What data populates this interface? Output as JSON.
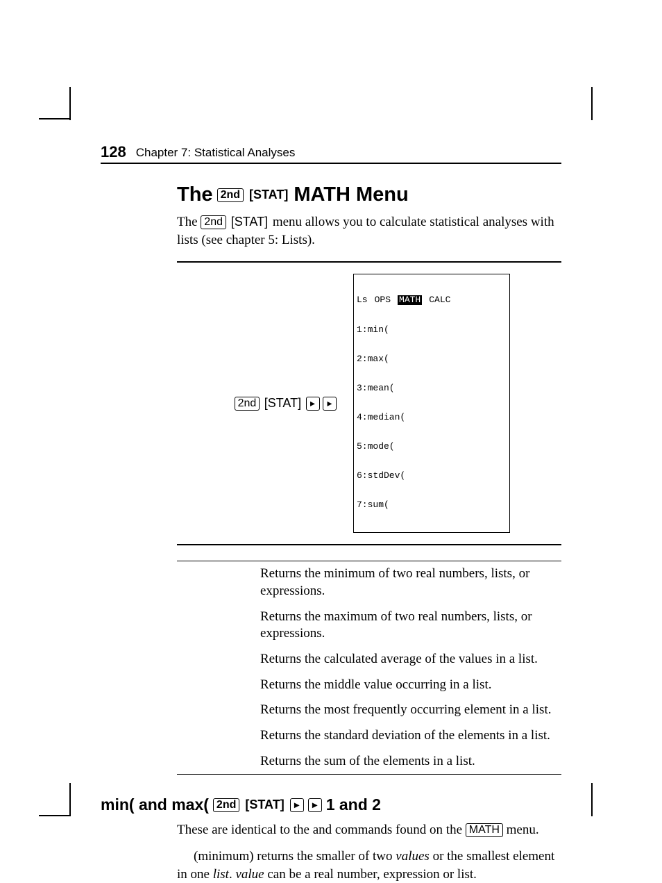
{
  "page_number": "128",
  "running_head": "Chapter 7: Statistical Analyses",
  "h1": {
    "pre": "The",
    "key2nd": "2nd",
    "stat": "[STAT]",
    "post": "MATH Menu"
  },
  "intro": {
    "pre": "The ",
    "key2nd": "2nd",
    "stat": "[STAT]",
    "rest": " menu allows you to calculate statistical analyses with lists (see chapter 5: Lists)."
  },
  "panel_left": {
    "key": "2nd",
    "stat": "[STAT]",
    "arrow": "▸"
  },
  "calc": {
    "tabs": [
      "Ls",
      "OPS",
      "MATH",
      "CALC"
    ],
    "lines": [
      "1:min(",
      "2:max(",
      "3:mean(",
      "4:median(",
      "5:mode(",
      "6:stdDev(",
      "7:sum("
    ]
  },
  "functions": [
    "Returns the minimum of two real numbers, lists, or expressions.",
    "Returns the maximum of two real numbers, lists, or expressions.",
    "Returns the calculated average of the values in a list.",
    "Returns the middle value occurring in a list.",
    "Returns the most frequently occurring element in a list.",
    "Returns the standard deviation of the elements in a list.",
    "Returns the sum of the elements in a list."
  ],
  "h2": {
    "pre": "min( and max(",
    "key": "2nd",
    "stat": "[STAT]",
    "arrow": "▸",
    "post": "1 and 2"
  },
  "p2": {
    "a": "These are identical to the ",
    "b": " and ",
    "c": " commands found on the ",
    "mathkey": "MATH",
    "d": " menu."
  },
  "p3": " (minimum) returns the smaller of two values or the smallest element in one list. value can be a real number, expression or list.",
  "p3_parts": {
    "a": " (minimum) returns the smaller of two ",
    "i1": "values",
    "b": " or the smallest element in one ",
    "i2": "list",
    "c": ". ",
    "i3": "value",
    "d": " can be a real number, expression or list."
  }
}
